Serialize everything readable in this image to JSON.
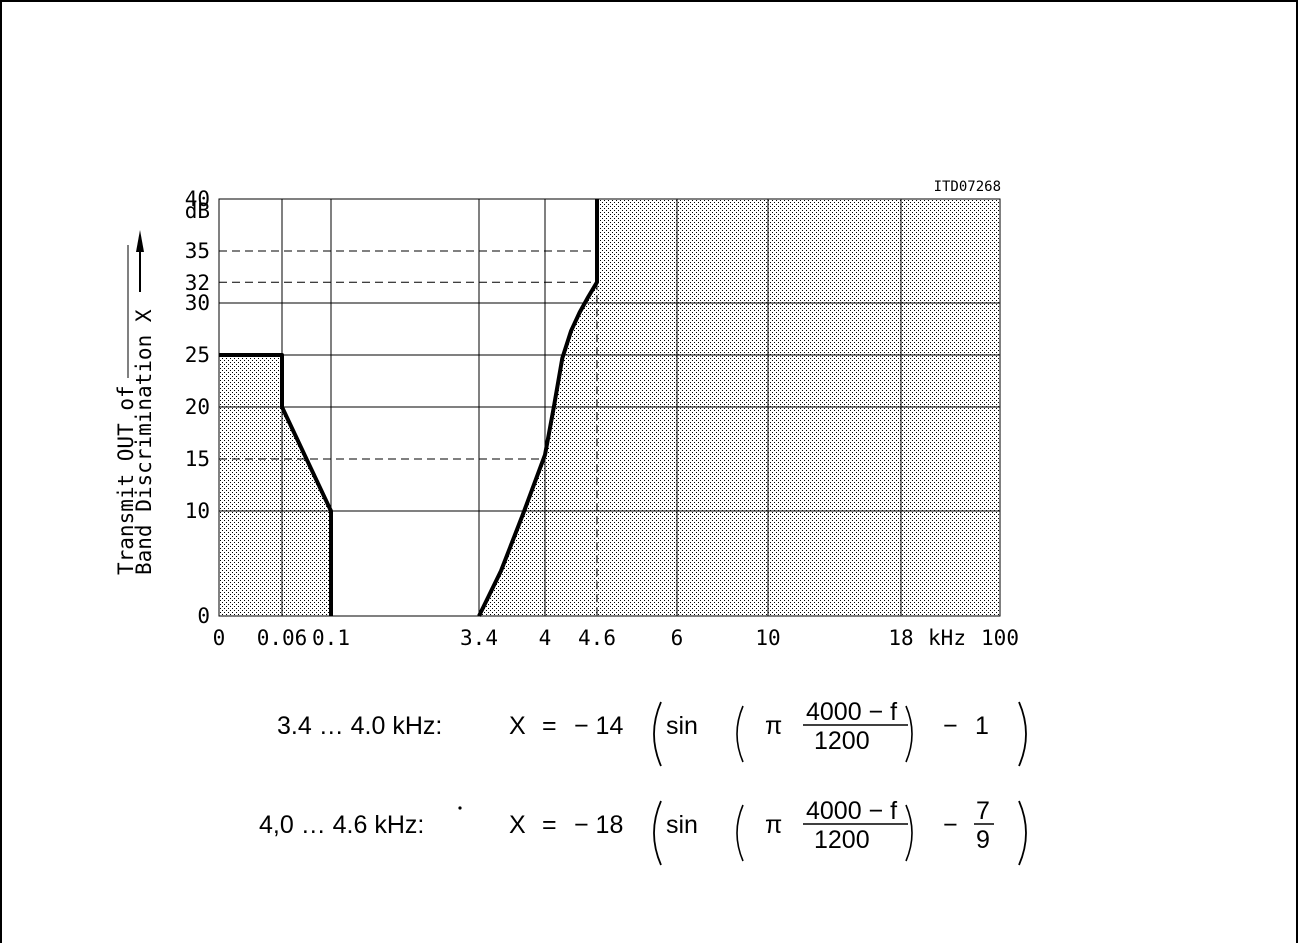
{
  "chart_data": {
    "type": "area",
    "figure_id": "ITD07268",
    "ylabel_line1": "Transmit OUT of",
    "ylabel_line2": "Band Discrimination X",
    "y_unit": "dB",
    "x_unit": "kHz",
    "x_ticks": [
      "0",
      "0.06",
      "0.1",
      "3.4",
      "4",
      "4.6",
      "6",
      "10",
      "18",
      "100"
    ],
    "y_ticks": [
      "0",
      "10",
      "15",
      "20",
      "25",
      "30",
      "32",
      "35",
      "40"
    ],
    "ylim": [
      0,
      40
    ],
    "grid": true,
    "series": [
      {
        "region": "lower stopband",
        "shaded": true,
        "points": [
          [
            0,
            25
          ],
          [
            0.06,
            25
          ],
          [
            0.06,
            20
          ],
          [
            0.1,
            10
          ],
          [
            0.1,
            0
          ]
        ]
      },
      {
        "region": "upper stopband",
        "shaded": true,
        "points": [
          [
            3.4,
            0
          ],
          [
            3.6,
            4.3
          ],
          [
            3.8,
            9.7
          ],
          [
            4.0,
            15.4
          ],
          [
            4.1,
            19.9
          ],
          [
            4.2,
            24.7
          ],
          [
            4.3,
            27.3
          ],
          [
            4.4,
            29.1
          ],
          [
            4.5,
            30.6
          ],
          [
            4.6,
            32
          ],
          [
            4.6,
            40
          ]
        ]
      }
    ],
    "reference_lines": {
      "horizontal_dashed": [
        35,
        32,
        15
      ],
      "vertical_dashed": [
        4.6
      ]
    },
    "formulas": [
      {
        "range": "3.4 … 4.0 kHz:",
        "lhs": "X",
        "eq": "=",
        "coef": "− 14",
        "func": "sin",
        "pi": "π",
        "numerator": "4000 − f",
        "denominator": "1200",
        "minus": "−",
        "offset": "1"
      },
      {
        "range_pre": "4,0 … 4.",
        "range_digit": "6",
        "range_post": " kHz:",
        "lhs": "X",
        "eq": "=",
        "coef": "− 18",
        "func": "sin",
        "pi": "π",
        "numerator": "4000 − f",
        "denominator": "1200",
        "minus": "−",
        "offset_num": "7",
        "offset_den": "9"
      }
    ]
  }
}
